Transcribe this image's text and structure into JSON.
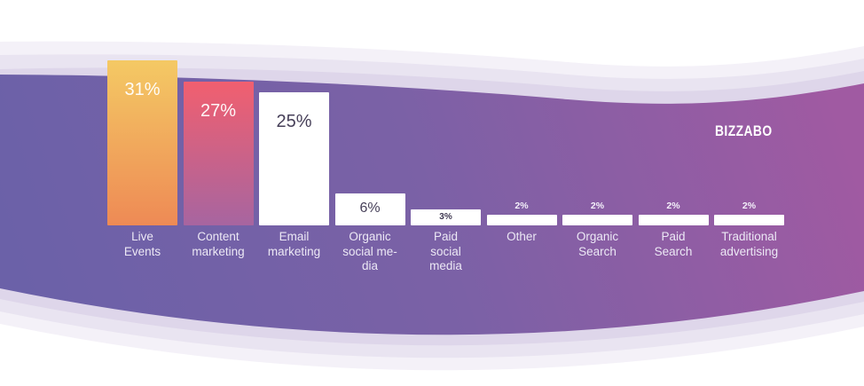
{
  "brand": {
    "name": "BIZZABO"
  },
  "chart_data": {
    "type": "bar",
    "title": "",
    "unit": "%",
    "grid": false,
    "legend": false,
    "ylim": [
      0,
      31
    ],
    "categories": [
      "Live Events",
      "Content marketing",
      "Email marketing",
      "Organic social media",
      "Paid social media",
      "Other",
      "Organic Search",
      "Paid Search",
      "Traditional advertising"
    ],
    "values": [
      31,
      27,
      25,
      6,
      3,
      2,
      2,
      2,
      2
    ],
    "bars": [
      {
        "category": "Live Events",
        "lines": [
          "Live",
          "Events"
        ],
        "value": 31,
        "value_label": "31%",
        "fill": "orange-gradient",
        "value_placement": "inside-top",
        "value_style": "lg-light"
      },
      {
        "category": "Content marketing",
        "lines": [
          "Content",
          "marketing"
        ],
        "value": 27,
        "value_label": "27%",
        "fill": "pink-purple-gradient",
        "value_placement": "inside-top",
        "value_style": "lg-light"
      },
      {
        "category": "Email marketing",
        "lines": [
          "Email",
          "marketing"
        ],
        "value": 25,
        "value_label": "25%",
        "fill": "white",
        "value_placement": "inside-top",
        "value_style": "lg-dark"
      },
      {
        "category": "Organic social media",
        "lines": [
          "Organic",
          "social me-",
          "dia"
        ],
        "value": 6,
        "value_label": "6%",
        "fill": "white",
        "value_placement": "inside-center",
        "value_style": "md-dark"
      },
      {
        "category": "Paid social media",
        "lines": [
          "Paid",
          "social",
          "media"
        ],
        "value": 3,
        "value_label": "3%",
        "fill": "white",
        "value_placement": "inside-center",
        "value_style": "sm-dark"
      },
      {
        "category": "Other",
        "lines": [
          "Other"
        ],
        "value": 2,
        "value_label": "2%",
        "fill": "white",
        "value_placement": "above",
        "value_style": "sm-light"
      },
      {
        "category": "Organic Search",
        "lines": [
          "Organic",
          "Search"
        ],
        "value": 2,
        "value_label": "2%",
        "fill": "white",
        "value_placement": "above",
        "value_style": "sm-light"
      },
      {
        "category": "Paid Search",
        "lines": [
          "Paid",
          "Search"
        ],
        "value": 2,
        "value_label": "2%",
        "fill": "white",
        "value_placement": "above",
        "value_style": "sm-light"
      },
      {
        "category": "Traditional advertising",
        "lines": [
          "Traditional",
          "advertising"
        ],
        "value": 2,
        "value_label": "2%",
        "fill": "white",
        "value_placement": "above",
        "value_style": "sm-light"
      }
    ]
  },
  "theme": {
    "background": "#ffffff",
    "body_gradient": [
      "#6b61a8",
      "#7b61a6",
      "#a05aa2"
    ],
    "wave_bands": [
      "#ded6ea",
      "#e9e4f1",
      "#f4f1f8"
    ],
    "bar_orange": [
      "#f4c964",
      "#ee8a55"
    ],
    "bar_pink": [
      "#f15f6f",
      "#a765a0"
    ],
    "bar_white": "#ffffff",
    "dark_text": "#474059",
    "light_text": "#ffffff"
  }
}
